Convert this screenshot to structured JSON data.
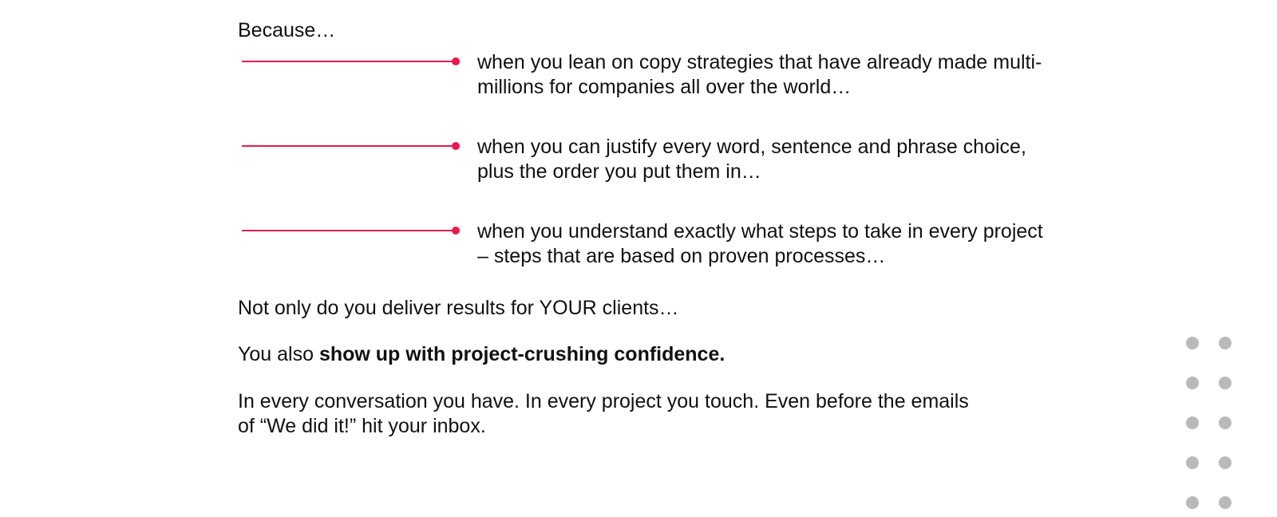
{
  "intro": "Because…",
  "bullets": [
    {
      "text": "when you lean on copy strategies that have already made multi-millions for companies all over the world…"
    },
    {
      "text": "when you can justify every word, sentence and phrase choice, plus the order you put them in…"
    },
    {
      "text": "when you understand exactly what steps to take in every project – steps that are based on proven processes…"
    }
  ],
  "paragraphs": {
    "results": "Not only do you deliver results for YOUR clients…",
    "confidence_prefix": "You also ",
    "confidence_bold": "show up with project-crushing confidence.",
    "closing": "In every conversation you have. In every project you touch. Even before the emails of “We did it!” hit your inbox."
  },
  "colors": {
    "accent": "#e8194f",
    "decorative_dots": "#b9b9b9"
  },
  "decoration": {
    "dot_grid_icon": "dot-grid-icon"
  }
}
